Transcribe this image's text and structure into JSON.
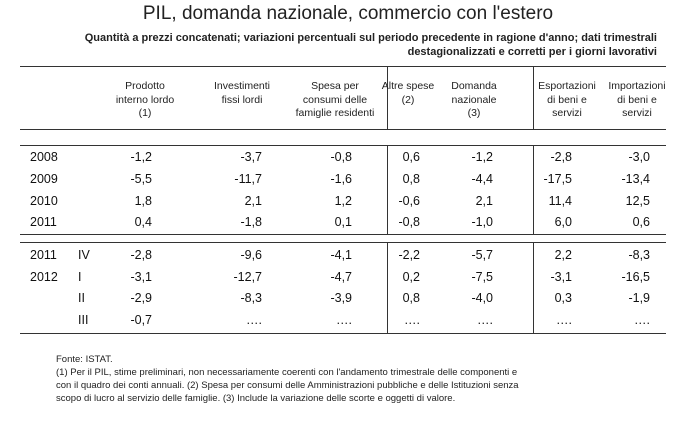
{
  "title": "PIL, domanda nazionale, commercio con l'estero",
  "subtitle": {
    "line1": "Quantità a prezzi concatenati; variazioni percentuali sul periodo precedente in ragione d'anno; dati trimestrali",
    "line2": "destagionalizzati e corretti per i giorni lavorativi"
  },
  "columns": [
    {
      "lines": [
        "Prodotto",
        "interno lordo",
        "(1)"
      ]
    },
    {
      "lines": [
        "Investimenti",
        "fissi lordi"
      ]
    },
    {
      "lines": [
        "Spesa per",
        "consumi delle",
        "famiglie residenti"
      ]
    },
    {
      "lines": [
        "Altre spese",
        "(2)"
      ]
    },
    {
      "lines": [
        "Domanda",
        "nazionale",
        "(3)"
      ]
    },
    {
      "lines": [
        "Esportazioni",
        "di beni e",
        "servizi"
      ]
    },
    {
      "lines": [
        "Importazioni",
        "di beni e",
        "servizi"
      ]
    }
  ],
  "annual_rows": [
    {
      "year": "2008",
      "values": [
        "-1,2",
        "-3,7",
        "-0,8",
        "0,6",
        "-1,2",
        "-2,8",
        "-3,0"
      ]
    },
    {
      "year": "2009",
      "values": [
        "-5,5",
        "-11,7",
        "-1,6",
        "0,8",
        "-4,4",
        "-17,5",
        "-13,4"
      ]
    },
    {
      "year": "2010",
      "values": [
        "1,8",
        "2,1",
        "1,2",
        "-0,6",
        "2,1",
        "11,4",
        "12,5"
      ]
    },
    {
      "year": "2011",
      "values": [
        "0,4",
        "-1,8",
        "0,1",
        "-0,8",
        "-1,0",
        "6,0",
        "0,6"
      ]
    }
  ],
  "quarterly_rows": [
    {
      "year": "2011",
      "quarter": "IV",
      "values": [
        "-2,8",
        "-9,6",
        "-4,1",
        "-2,2",
        "-5,7",
        "2,2",
        "-8,3"
      ]
    },
    {
      "year": "2012",
      "quarter": "I",
      "values": [
        "-3,1",
        "-12,7",
        "-4,7",
        "0,2",
        "-7,5",
        "-3,1",
        "-16,5"
      ]
    },
    {
      "year": "",
      "quarter": "II",
      "values": [
        "-2,9",
        "-8,3",
        "-3,9",
        "0,8",
        "-4,0",
        "0,3",
        "-1,9"
      ]
    },
    {
      "year": "",
      "quarter": "III",
      "values": [
        "-0,7",
        "….",
        "….",
        "….",
        "….",
        "….",
        "…."
      ]
    }
  ],
  "footnotes": {
    "source": "Fonte: ISTAT.",
    "line1": "(1) Per il PIL, stime preliminari, non necessariamente coerenti con l'andamento trimestrale delle componenti e",
    "line2": "con il quadro dei conti annuali. (2) Spesa per consumi delle Amministrazioni pubbliche e delle Istituzioni senza",
    "line3": "scopo di lucro al servizio delle famiglie. (3) Include la variazione delle scorte e oggetti di valore."
  }
}
